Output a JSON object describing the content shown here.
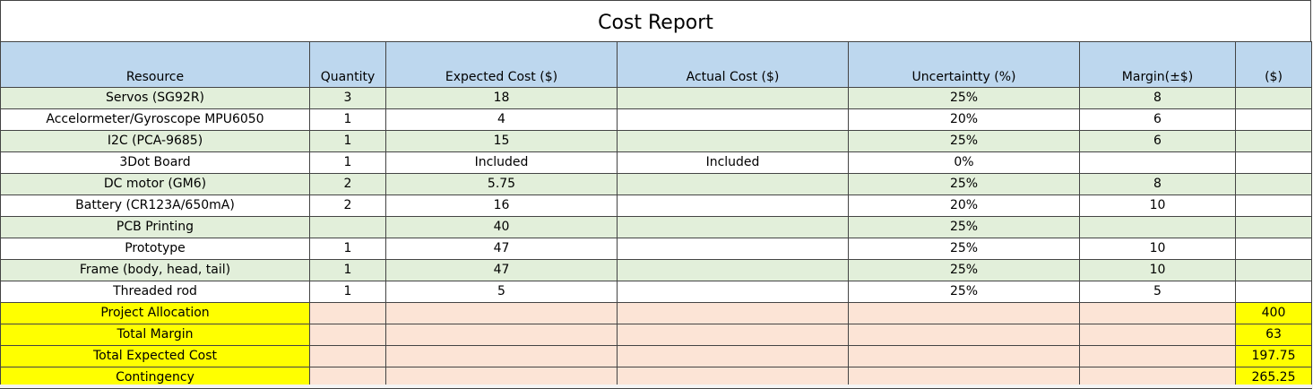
{
  "title": "Cost Report",
  "headers": [
    "Resource",
    "Quantity",
    "Expected Cost ($)",
    "Actual Cost ($)",
    "Uncertaintty (%)",
    "Margin(±$)",
    "($)"
  ],
  "rows": [
    [
      "Servos (SG92R)",
      "3",
      "18",
      "",
      "25%",
      "8",
      ""
    ],
    [
      "Accelormeter/Gyroscope MPU6050",
      "1",
      "4",
      "",
      "20%",
      "6",
      ""
    ],
    [
      "I2C (PCA-9685)",
      "1",
      "15",
      "",
      "25%",
      "6",
      ""
    ],
    [
      "3Dot Board",
      "1",
      "Included",
      "Included",
      "0%",
      "",
      ""
    ],
    [
      "DC motor (GM6)",
      "2",
      "5.75",
      "",
      "25%",
      "8",
      ""
    ],
    [
      "Battery (CR123A/650mA)",
      "2",
      "16",
      "",
      "20%",
      "10",
      ""
    ],
    [
      "PCB Printing",
      "",
      "40",
      "",
      "25%",
      "",
      ""
    ],
    [
      "Prototype",
      "1",
      "47",
      "",
      "25%",
      "10",
      ""
    ],
    [
      "Frame (body, head, tail)",
      "1",
      "47",
      "",
      "25%",
      "10",
      ""
    ],
    [
      "Threaded rod",
      "1",
      "5",
      "",
      "25%",
      "5",
      ""
    ]
  ],
  "summary": [
    {
      "label": "Project Allocation",
      "value": "400"
    },
    {
      "label": "Total Margin",
      "value": "63"
    },
    {
      "label": "Total Expected Cost",
      "value": "197.75"
    },
    {
      "label": "Contingency",
      "value": "265.25"
    }
  ],
  "colors": {
    "header_bg": "#bdd7ee",
    "row_shade": "#e2efda",
    "summary_fill": "#fce4d6",
    "highlight": "#ffff00",
    "border": "#444444"
  }
}
